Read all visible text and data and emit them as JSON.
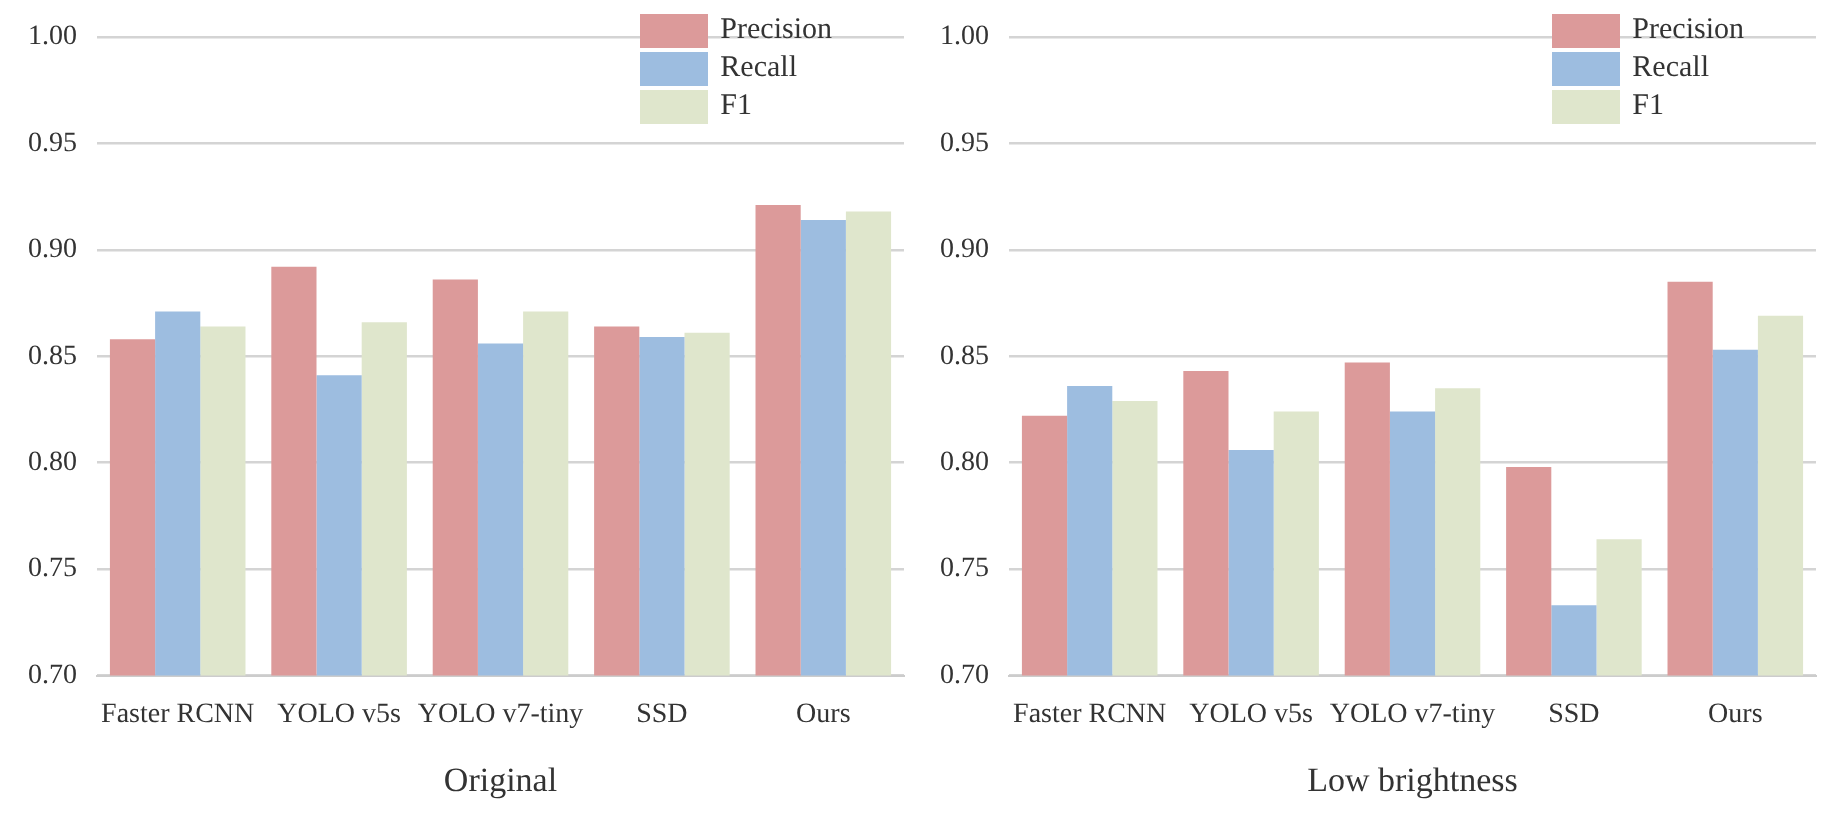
{
  "chart_data": [
    {
      "type": "bar",
      "xlabel": "Original",
      "categories": [
        "Faster RCNN",
        "YOLO v5s",
        "YOLO v7-tiny",
        "SSD",
        "Ours"
      ],
      "series": [
        {
          "name": "Precision",
          "color": "#dc9a9a",
          "values": [
            0.858,
            0.892,
            0.886,
            0.864,
            0.921
          ]
        },
        {
          "name": "Recall",
          "color": "#9dbde0",
          "values": [
            0.871,
            0.841,
            0.856,
            0.859,
            0.914
          ]
        },
        {
          "name": "F1",
          "color": "#dfe6cc",
          "values": [
            0.864,
            0.866,
            0.871,
            0.861,
            0.918
          ]
        }
      ],
      "ylim": [
        0.7,
        1.0
      ],
      "yticks": [
        {
          "value": 0.7,
          "label": "0.70"
        },
        {
          "value": 0.75,
          "label": "0.75"
        },
        {
          "value": 0.8,
          "label": "0.80"
        },
        {
          "value": 0.85,
          "label": "0.85"
        },
        {
          "value": 0.9,
          "label": "0.90"
        },
        {
          "value": 0.95,
          "label": "0.95"
        },
        {
          "value": 1.0,
          "label": "1.00"
        }
      ],
      "grid": "y",
      "legend": "top right"
    },
    {
      "type": "bar",
      "xlabel": "Low brightness",
      "categories": [
        "Faster RCNN",
        "YOLO v5s",
        "YOLO v7-tiny",
        "SSD",
        "Ours"
      ],
      "series": [
        {
          "name": "Precision",
          "color": "#dc9a9a",
          "values": [
            0.822,
            0.843,
            0.847,
            0.798,
            0.885
          ]
        },
        {
          "name": "Recall",
          "color": "#9dbde0",
          "values": [
            0.836,
            0.806,
            0.824,
            0.733,
            0.853
          ]
        },
        {
          "name": "F1",
          "color": "#dfe6cc",
          "values": [
            0.829,
            0.824,
            0.835,
            0.764,
            0.869
          ]
        }
      ],
      "ylim": [
        0.7,
        1.0
      ],
      "yticks": [
        {
          "value": 0.7,
          "label": "0.70"
        },
        {
          "value": 0.75,
          "label": "0.75"
        },
        {
          "value": 0.8,
          "label": "0.80"
        },
        {
          "value": 0.85,
          "label": "0.85"
        },
        {
          "value": 0.9,
          "label": "0.90"
        },
        {
          "value": 0.95,
          "label": "0.95"
        },
        {
          "value": 1.0,
          "label": "1.00"
        }
      ],
      "grid": "y",
      "legend": "top right"
    }
  ]
}
